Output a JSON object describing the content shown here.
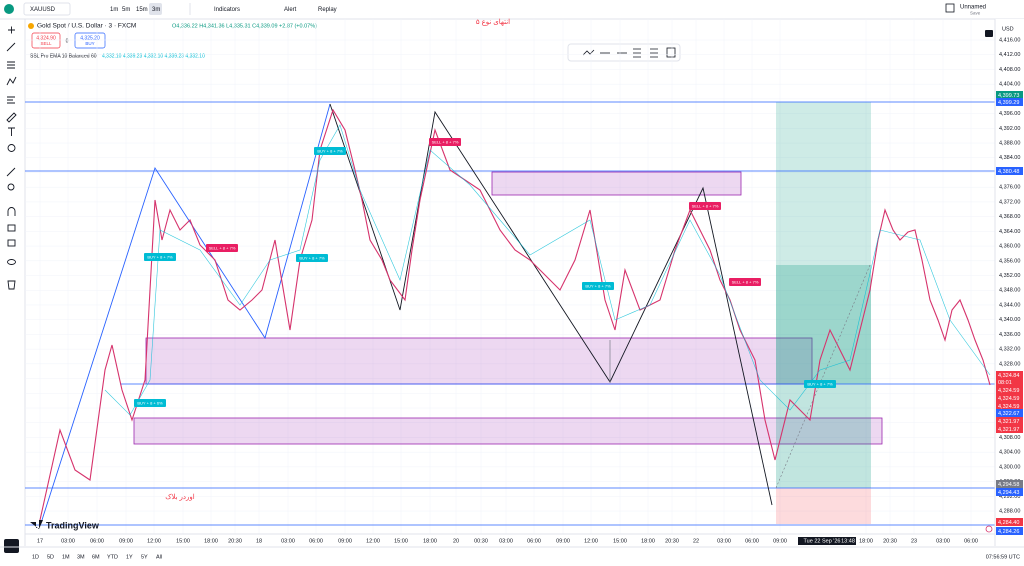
{
  "header": {
    "symbol": "XAUUSD",
    "title": "Gold Spot / U.S. Dollar · 3 · FXCM",
    "ohlc": "O4,336.22 H4,341.36 L4,335.31 C4,339.09 +2.87 (+0.07%)",
    "sell_price": "4,324.90",
    "sell": "SELL",
    "spread": "0",
    "buy_price": "4,325.20",
    "buy": "BUY",
    "indicator": "SSL Pro EMA 10 Balanced 60",
    "indicator_values": "4,332.10  4,339.23  4,332.10  4,339.23  4,332.10",
    "intervals": [
      "1m",
      "5m",
      "15m",
      "3m"
    ],
    "indicators": "Indicators",
    "alert": "Alert",
    "replay": "Replay",
    "layout_name": "Unnamed",
    "save": "Save"
  },
  "price_axis": {
    "currency": "USD",
    "labels": [
      "4,416.00",
      "4,412.00",
      "4,408.00",
      "4,404.00",
      "4,400.00",
      "4,396.00",
      "4,392.00",
      "4,388.00",
      "4,384.00",
      "4,380.00",
      "4,376.00",
      "4,372.00",
      "4,368.00",
      "4,364.00",
      "4,360.00",
      "4,356.00",
      "4,352.00",
      "4,348.00",
      "4,344.00",
      "4,340.00",
      "4,336.00",
      "4,332.00",
      "4,328.00",
      "4,324.00",
      "4,320.00",
      "4,316.00",
      "4,312.00",
      "4,308.00",
      "4,304.00",
      "4,300.00",
      "4,296.00",
      "4,292.00",
      "4,288.00"
    ],
    "highlights": [
      {
        "label": "4,399.73",
        "color": "#089981"
      },
      {
        "label": "4,399.29",
        "color": "#2962ff"
      },
      {
        "label": "4,380.48",
        "color": "#2962ff"
      },
      {
        "label": "4,324.84",
        "color": "#f23645"
      },
      {
        "label": "08:01",
        "color": "#f23645"
      },
      {
        "label": "4,324.59",
        "color": "#f23645"
      },
      {
        "label": "4,324.59",
        "color": "#f23645"
      },
      {
        "label": "4,324.59",
        "color": "#f23645"
      },
      {
        "label": "4,322.67",
        "color": "#2962ff"
      },
      {
        "label": "4,321.97",
        "color": "#f23645"
      },
      {
        "label": "4,321.97",
        "color": "#f23645"
      },
      {
        "label": "4,294.58",
        "color": "#787b86"
      },
      {
        "label": "4,294.43",
        "color": "#2962ff"
      },
      {
        "label": "4,284.40",
        "color": "#f23645"
      },
      {
        "label": "4,284.26",
        "color": "#2962ff"
      }
    ]
  },
  "time_axis": [
    "17",
    "03:00",
    "06:00",
    "09:00",
    "12:00",
    "15:00",
    "18:00",
    "20:30",
    "18",
    "03:00",
    "06:00",
    "09:00",
    "12:00",
    "15:00",
    "18:00",
    "20",
    "00:30",
    "03:00",
    "06:00",
    "09:00",
    "12:00",
    "15:00",
    "18:00",
    "20:30",
    "22",
    "03:00",
    "06:00",
    "09:00",
    "Tue 22 Sep '26",
    "13:48",
    "18:00",
    "20:30",
    "23",
    "03:00",
    "06:00"
  ],
  "annotations": {
    "order_block": "اوردر بلاک",
    "top_note": "انتهای نوع ۵",
    "signals": [
      "BUY + 8 + 7%",
      "SELL + 8 + 7%",
      "BUY + 8 + 6%",
      "BUY + 8 + 7%",
      "SELL + 8 + 7%",
      "BUY + 8 + 7%",
      "BUY + 8 + 7%",
      "SELL + 8 + 7%",
      "SELL + 8 + 7%",
      "BUY + 8 + 7%"
    ]
  },
  "footer": {
    "ranges": [
      "1D",
      "5D",
      "1M",
      "3M",
      "6M",
      "YTD",
      "1Y",
      "5Y",
      "All"
    ],
    "clock": "07:56:59 UTC",
    "brand": "TradingView"
  }
}
